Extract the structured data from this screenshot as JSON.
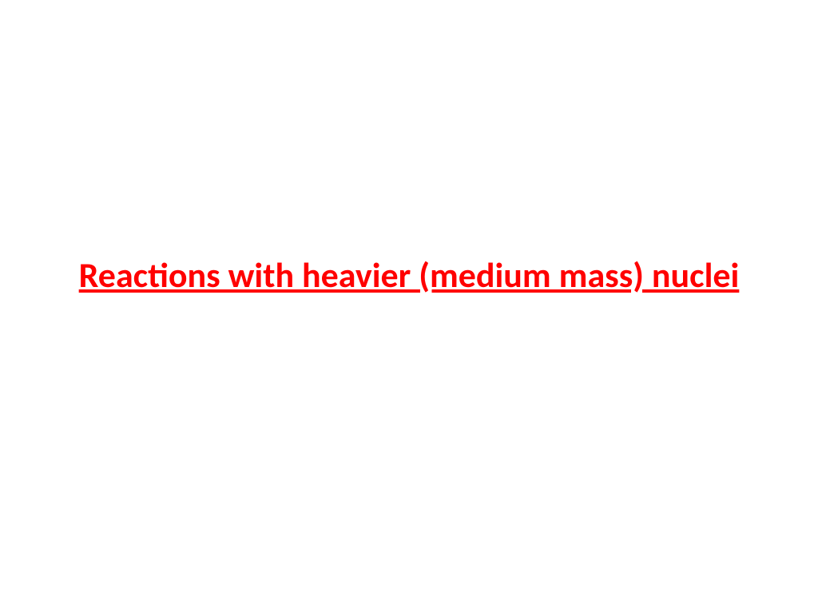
{
  "slide": {
    "title": "Reactions with heavier (medium mass) nuclei",
    "title_color": "#ff0000",
    "title_fontsize": 44,
    "title_weight": "bold",
    "title_underline": true,
    "background_color": "#ffffff"
  }
}
